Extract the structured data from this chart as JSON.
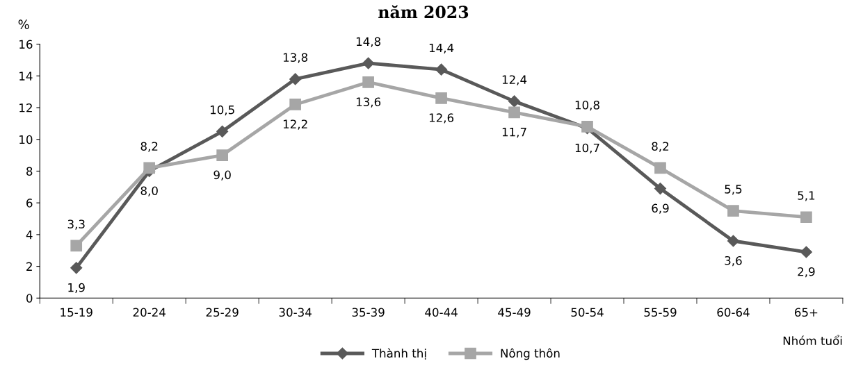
{
  "chart_data": {
    "type": "line",
    "title": "năm 2023",
    "ylabel": "%",
    "xlabel": "Nhóm tuổi",
    "categories": [
      "15-19",
      "20-24",
      "25-29",
      "30-34",
      "35-39",
      "40-44",
      "45-49",
      "50-54",
      "55-59",
      "60-64",
      "65+"
    ],
    "series": [
      {
        "name": "Thành thị",
        "color": "#595959",
        "marker": "diamond",
        "values": [
          1.9,
          8.0,
          10.5,
          13.8,
          14.8,
          14.4,
          12.4,
          10.7,
          6.9,
          3.6,
          2.9
        ],
        "value_labels": [
          "1,9",
          "8,0",
          "10,5",
          "13,8",
          "14,8",
          "14,4",
          "12,4",
          "10,7",
          "6,9",
          "3,6",
          "2,9"
        ]
      },
      {
        "name": "Nông thôn",
        "color": "#a6a6a6",
        "marker": "square",
        "values": [
          3.3,
          8.2,
          9.0,
          12.2,
          13.6,
          12.6,
          11.7,
          10.8,
          8.2,
          5.5,
          5.1
        ],
        "value_labels": [
          "3,3",
          "8,2",
          "9,0",
          "12,2",
          "13,6",
          "12,6",
          "11,7",
          "10,8",
          "8,2",
          "5,5",
          "5,1"
        ]
      }
    ],
    "ylim": [
      0,
      16
    ],
    "yticks": [
      0,
      2,
      4,
      6,
      8,
      10,
      12,
      14,
      16
    ],
    "grid": false,
    "legend": "bottom",
    "line_style": "solid"
  }
}
